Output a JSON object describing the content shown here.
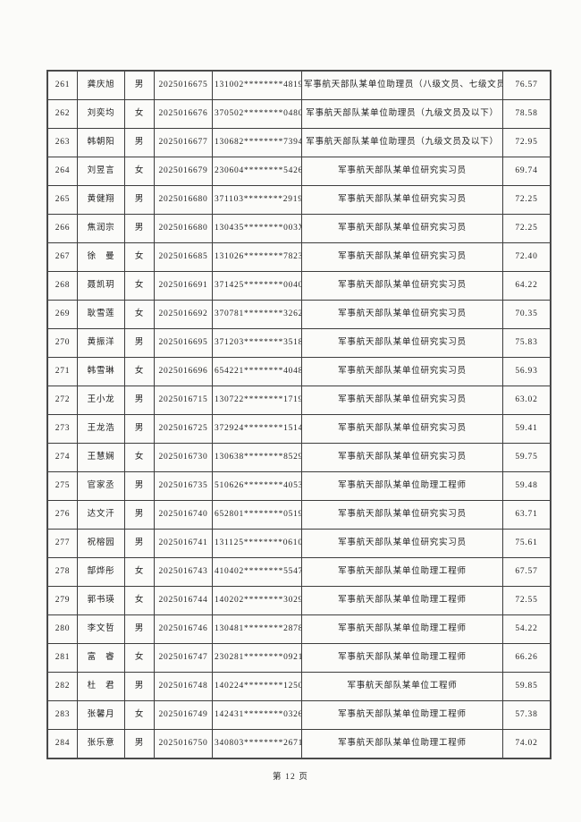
{
  "page": {
    "footer": "第 12 页"
  },
  "table": {
    "column_keys": [
      "no",
      "name",
      "gender",
      "exam_no",
      "id_masked",
      "position",
      "score"
    ],
    "rows": [
      {
        "no": "261",
        "name": "龚庆旭",
        "gender": "男",
        "exam_no": "2025016675",
        "id_masked": "131002********4819",
        "position": "军事航天部队某单位助理员（八级文员、七级文员）",
        "score": "76.57"
      },
      {
        "no": "262",
        "name": "刘奕均",
        "gender": "女",
        "exam_no": "2025016676",
        "id_masked": "370502********0480",
        "position": "军事航天部队某单位助理员（九级文员及以下）",
        "score": "78.58"
      },
      {
        "no": "263",
        "name": "韩朝阳",
        "gender": "男",
        "exam_no": "2025016677",
        "id_masked": "130682********7394",
        "position": "军事航天部队某单位助理员（九级文员及以下）",
        "score": "72.95"
      },
      {
        "no": "264",
        "name": "刘昱言",
        "gender": "女",
        "exam_no": "2025016679",
        "id_masked": "230604********5426",
        "position": "军事航天部队某单位研究实习员",
        "score": "69.74"
      },
      {
        "no": "265",
        "name": "黄健翔",
        "gender": "男",
        "exam_no": "2025016680",
        "id_masked": "371103********2919",
        "position": "军事航天部队某单位研究实习员",
        "score": "72.25"
      },
      {
        "no": "266",
        "name": "焦润宗",
        "gender": "男",
        "exam_no": "2025016680",
        "id_masked": "130435********003X",
        "position": "军事航天部队某单位研究实习员",
        "score": "72.25"
      },
      {
        "no": "267",
        "name": "徐　曼",
        "gender": "女",
        "exam_no": "2025016685",
        "id_masked": "131026********7823",
        "position": "军事航天部队某单位研究实习员",
        "score": "72.40"
      },
      {
        "no": "268",
        "name": "聂凯玥",
        "gender": "女",
        "exam_no": "2025016691",
        "id_masked": "371425********0040",
        "position": "军事航天部队某单位研究实习员",
        "score": "64.22"
      },
      {
        "no": "269",
        "name": "耿雪莲",
        "gender": "女",
        "exam_no": "2025016692",
        "id_masked": "370781********3262",
        "position": "军事航天部队某单位研究实习员",
        "score": "70.35"
      },
      {
        "no": "270",
        "name": "黄振洋",
        "gender": "男",
        "exam_no": "2025016695",
        "id_masked": "371203********3518",
        "position": "军事航天部队某单位研究实习员",
        "score": "75.83"
      },
      {
        "no": "271",
        "name": "韩雪琳",
        "gender": "女",
        "exam_no": "2025016696",
        "id_masked": "654221********4048",
        "position": "军事航天部队某单位研究实习员",
        "score": "56.93"
      },
      {
        "no": "272",
        "name": "王小龙",
        "gender": "男",
        "exam_no": "2025016715",
        "id_masked": "130722********1719",
        "position": "军事航天部队某单位研究实习员",
        "score": "63.02"
      },
      {
        "no": "273",
        "name": "王龙浩",
        "gender": "男",
        "exam_no": "2025016725",
        "id_masked": "372924********1514",
        "position": "军事航天部队某单位研究实习员",
        "score": "59.41"
      },
      {
        "no": "274",
        "name": "王慧娴",
        "gender": "女",
        "exam_no": "2025016730",
        "id_masked": "130638********8529",
        "position": "军事航天部队某单位研究实习员",
        "score": "59.75"
      },
      {
        "no": "275",
        "name": "官家丞",
        "gender": "男",
        "exam_no": "2025016735",
        "id_masked": "510626********4053",
        "position": "军事航天部队某单位助理工程师",
        "score": "59.48"
      },
      {
        "no": "276",
        "name": "达文汗",
        "gender": "男",
        "exam_no": "2025016740",
        "id_masked": "652801********0519",
        "position": "军事航天部队某单位研究实习员",
        "score": "63.71"
      },
      {
        "no": "277",
        "name": "祝榕园",
        "gender": "男",
        "exam_no": "2025016741",
        "id_masked": "131125********0610",
        "position": "军事航天部队某单位研究实习员",
        "score": "75.61"
      },
      {
        "no": "278",
        "name": "郜烨彤",
        "gender": "女",
        "exam_no": "2025016743",
        "id_masked": "410402********5547",
        "position": "军事航天部队某单位助理工程师",
        "score": "67.57"
      },
      {
        "no": "279",
        "name": "郭书瑛",
        "gender": "女",
        "exam_no": "2025016744",
        "id_masked": "140202********3029",
        "position": "军事航天部队某单位助理工程师",
        "score": "72.55"
      },
      {
        "no": "280",
        "name": "李文哲",
        "gender": "男",
        "exam_no": "2025016746",
        "id_masked": "130481********2878",
        "position": "军事航天部队某单位助理工程师",
        "score": "54.22"
      },
      {
        "no": "281",
        "name": "富　睿",
        "gender": "女",
        "exam_no": "2025016747",
        "id_masked": "230281********0921",
        "position": "军事航天部队某单位助理工程师",
        "score": "66.26"
      },
      {
        "no": "282",
        "name": "杜　君",
        "gender": "男",
        "exam_no": "2025016748",
        "id_masked": "140224********1250",
        "position": "军事航天部队某单位工程师",
        "score": "59.85"
      },
      {
        "no": "283",
        "name": "张馨月",
        "gender": "女",
        "exam_no": "2025016749",
        "id_masked": "142431********0326",
        "position": "军事航天部队某单位助理工程师",
        "score": "57.38"
      },
      {
        "no": "284",
        "name": "张乐意",
        "gender": "男",
        "exam_no": "2025016750",
        "id_masked": "340803********2671",
        "position": "军事航天部队某单位助理工程师",
        "score": "74.02"
      }
    ]
  }
}
